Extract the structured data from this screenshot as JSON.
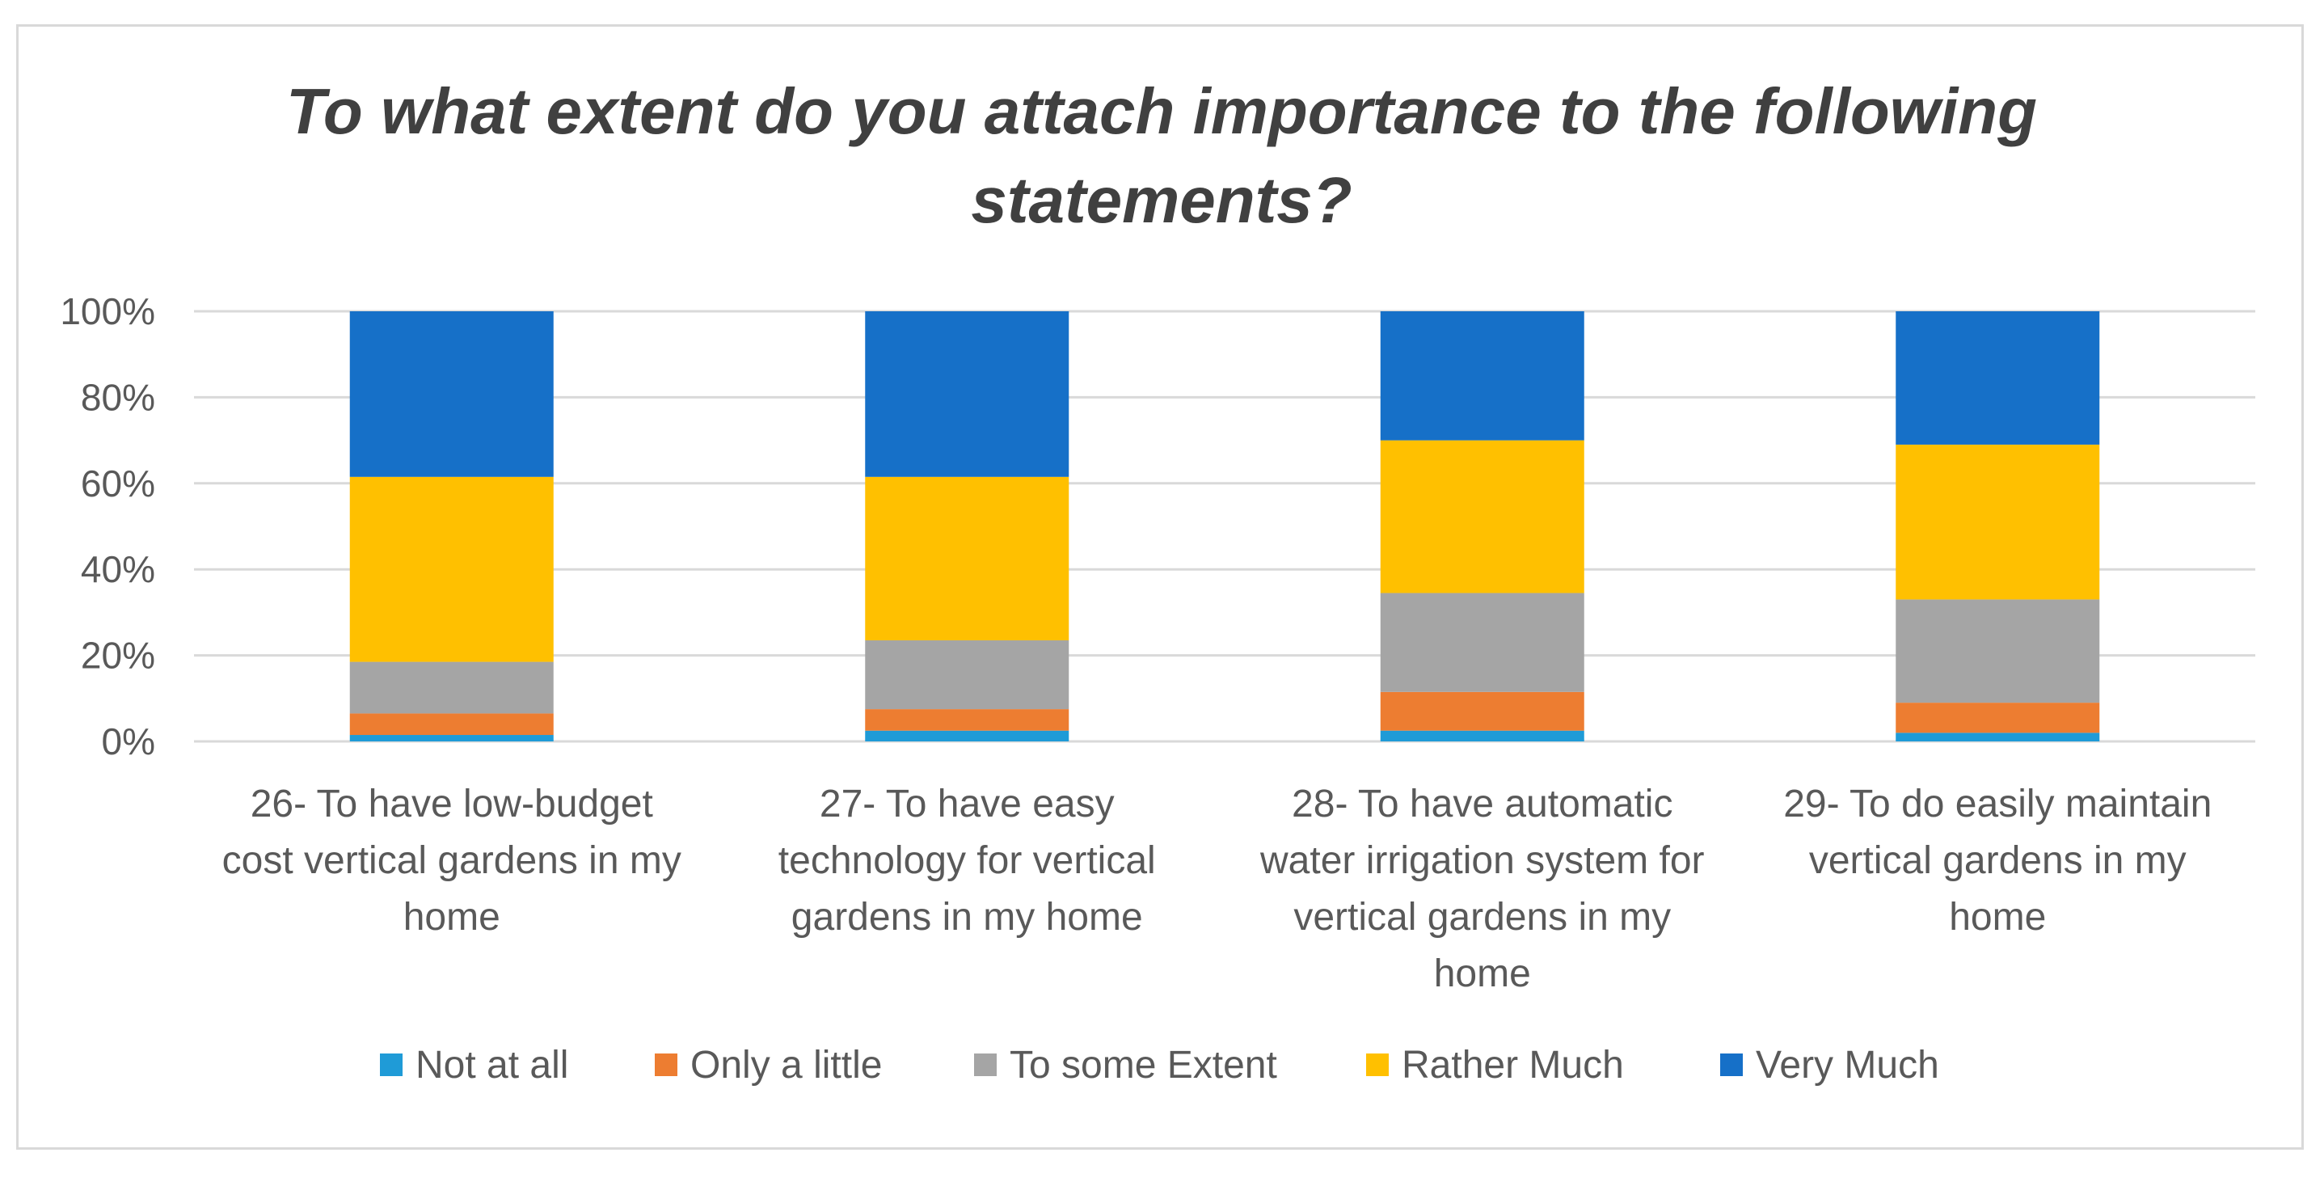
{
  "chart_data": {
    "type": "bar",
    "stacked": true,
    "title": "To what extent do you attach importance to the following statements?",
    "title_lines": [
      "To what extent do you attach importance to the following",
      "statements?"
    ],
    "ylim": [
      0,
      100
    ],
    "y_ticks": [
      "100%",
      "80%",
      "60%",
      "40%",
      "20%",
      "0%"
    ],
    "y_tick_values": [
      100,
      80,
      60,
      40,
      20,
      0
    ],
    "grid": true,
    "legend_position": "bottom",
    "categories": [
      "26- To have low-budget cost vertical gardens in my home",
      "27- To have easy technology for vertical gardens in my home",
      "28- To have automatic water irrigation system for vertical gardens in my home",
      "29- To do easily maintain vertical gardens in my home"
    ],
    "category_lines": [
      [
        "26- To have low-budget",
        "cost vertical gardens in my",
        "home"
      ],
      [
        "27- To have easy",
        "technology for vertical",
        "gardens in my home"
      ],
      [
        "28- To have automatic",
        "water irrigation system for",
        "vertical gardens in my",
        "home"
      ],
      [
        "29- To do easily maintain",
        "vertical gardens in my",
        "home"
      ]
    ],
    "series": [
      {
        "name": "Not at all",
        "color": "#1f9bd7",
        "values": [
          1.5,
          2.5,
          2.5,
          2
        ]
      },
      {
        "name": "Only a little",
        "color": "#ed7d31",
        "values": [
          5,
          5,
          9,
          7
        ]
      },
      {
        "name": "To some Extent",
        "color": "#a5a5a5",
        "values": [
          12,
          16,
          23,
          24
        ]
      },
      {
        "name": "Rather Much",
        "color": "#ffc000",
        "values": [
          43,
          38,
          35.5,
          36
        ]
      },
      {
        "name": "Very Much",
        "color": "#1670c8",
        "values": [
          38.5,
          38.5,
          30,
          31
        ]
      }
    ]
  }
}
